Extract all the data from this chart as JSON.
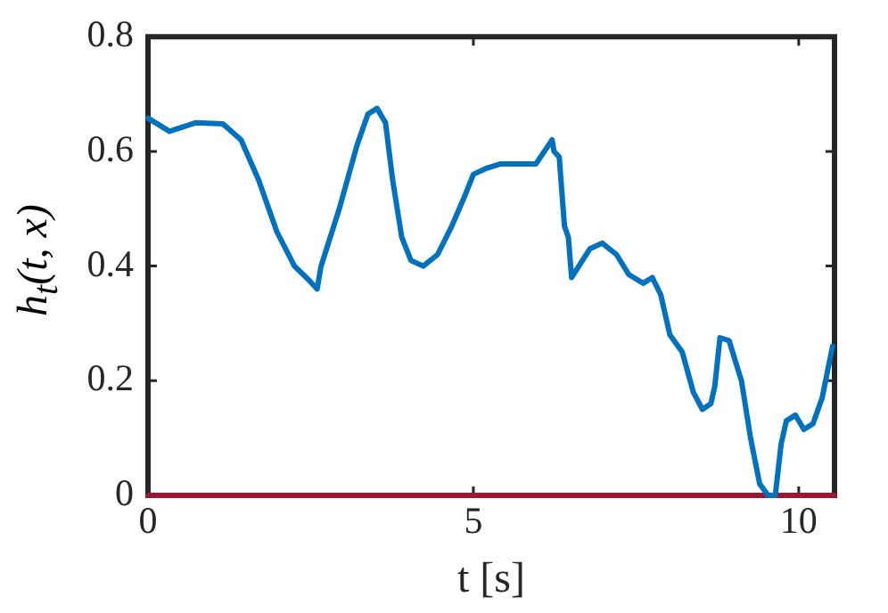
{
  "chart_data": {
    "type": "line",
    "xlabel": "t [s]",
    "ylabel": "h$_{t}$(t, x)",
    "x": [
      0,
      0.33,
      0.74,
      1.15,
      1.43,
      1.7,
      1.98,
      2.25,
      2.45,
      2.6,
      2.66,
      2.94,
      3.21,
      3.38,
      3.52,
      3.65,
      3.76,
      3.9,
      4.04,
      4.23,
      4.45,
      4.67,
      4.86,
      5.0,
      5.19,
      5.41,
      5.96,
      6.21,
      6.24,
      6.32,
      6.4,
      6.46,
      6.51,
      6.79,
      6.98,
      7.2,
      7.39,
      7.61,
      7.75,
      7.88,
      8.02,
      8.21,
      8.38,
      8.52,
      8.65,
      8.71,
      8.79,
      8.93,
      9.12,
      9.26,
      9.4,
      9.53,
      9.64,
      9.73,
      9.81,
      9.95,
      10.08,
      10.22,
      10.36,
      10.52
    ],
    "series": [
      {
        "color": "#0072bd",
        "values": [
          0.658,
          0.635,
          0.65,
          0.648,
          0.62,
          0.55,
          0.46,
          0.4,
          0.378,
          0.36,
          0.4,
          0.5,
          0.61,
          0.665,
          0.675,
          0.65,
          0.55,
          0.45,
          0.41,
          0.4,
          0.42,
          0.47,
          0.52,
          0.56,
          0.57,
          0.578,
          0.578,
          0.62,
          0.6,
          0.59,
          0.47,
          0.45,
          0.38,
          0.43,
          0.44,
          0.42,
          0.385,
          0.37,
          0.38,
          0.35,
          0.28,
          0.25,
          0.18,
          0.15,
          0.16,
          0.19,
          0.275,
          0.27,
          0.2,
          0.1,
          0.02,
          0,
          0,
          0.09,
          0.13,
          0.14,
          0.115,
          0.125,
          0.17,
          0.26
        ]
      },
      {
        "color": "#a2142f",
        "x": [
          0,
          10.55
        ],
        "values": [
          0,
          0
        ]
      }
    ],
    "xlim": [
      0,
      10.55
    ],
    "xticks": [
      0,
      5,
      10
    ],
    "ylim": [
      0,
      0.8
    ],
    "yticks": [
      0,
      0.2,
      0.4,
      0.6,
      0.8
    ],
    "grid": false,
    "legend": false,
    "marker": "none",
    "line_style": "solid"
  }
}
